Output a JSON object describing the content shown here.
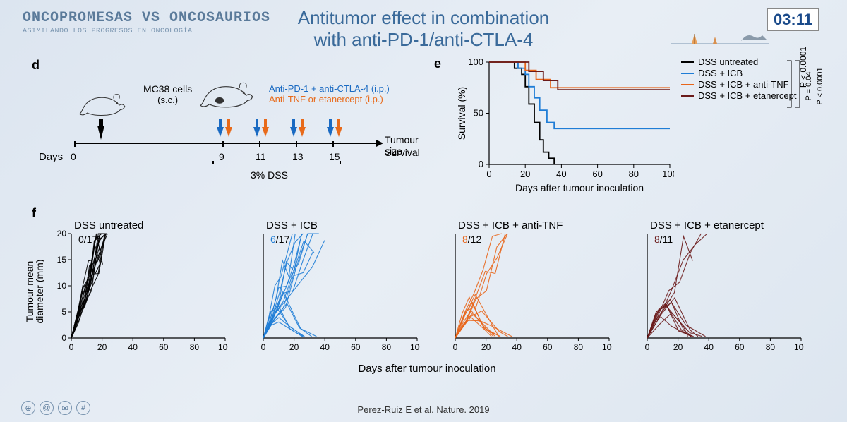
{
  "logo": {
    "main": "ONCOPROMESAS VS ONCOSAURIOS",
    "sub": "ASIMILANDO LOS PROGRESOS EN ONCOLOGÍA"
  },
  "title_l1": "Antitumor effect in combination",
  "title_l2": "with anti-PD-1/anti-CTLA-4",
  "timer": "03:11",
  "citation": "Perez-Ruiz E et al. Nature. 2019",
  "colors": {
    "black": "#000000",
    "blue": "#1f7dd6",
    "orange": "#e8651a",
    "darkred": "#6a1a1a",
    "title": "#3a6a9a",
    "grid": "#555555"
  },
  "panel_d": {
    "label": "d",
    "cells": "MC38 cells",
    "sc": "(s.c.)",
    "tx1": "Anti-PD-1 + anti-CTLA-4 (i.p.)",
    "tx2": "Anti-TNF or etanercept (i.p.)",
    "days_label": "Days",
    "days": [
      "0",
      "9",
      "11",
      "13",
      "15"
    ],
    "out1": "Tumour size",
    "out2": "Survival",
    "dss": "3% DSS",
    "timeline_x": [
      0,
      210,
      262,
      314,
      366
    ],
    "arrow_days_x": [
      210,
      262,
      314,
      366
    ]
  },
  "panel_e": {
    "label": "e",
    "ylabel": "Survival (%)",
    "xlabel": "Days after tumour inoculation",
    "xlim": [
      0,
      100
    ],
    "ylim": [
      0,
      100
    ],
    "xticks": [
      0,
      20,
      40,
      60,
      80,
      100
    ],
    "yticks": [
      0,
      50,
      100
    ],
    "legend": [
      {
        "label": "DSS untreated",
        "color": "#000000"
      },
      {
        "label": "DSS + ICB",
        "color": "#1f7dd6"
      },
      {
        "label": "DSS + ICB + anti-TNF",
        "color": "#e8651a"
      },
      {
        "label": "DSS + ICB + etanercept",
        "color": "#6a1a1a"
      }
    ],
    "pvals": [
      "P < 0.0001",
      "P = 0.04"
    ],
    "series": {
      "untreated": [
        [
          0,
          100
        ],
        [
          14,
          100
        ],
        [
          14,
          94
        ],
        [
          18,
          94
        ],
        [
          18,
          88
        ],
        [
          20,
          88
        ],
        [
          20,
          76
        ],
        [
          22,
          76
        ],
        [
          22,
          59
        ],
        [
          25,
          59
        ],
        [
          25,
          41
        ],
        [
          28,
          41
        ],
        [
          28,
          24
        ],
        [
          30,
          24
        ],
        [
          30,
          12
        ],
        [
          33,
          12
        ],
        [
          33,
          6
        ],
        [
          36,
          6
        ],
        [
          36,
          0
        ]
      ],
      "icb": [
        [
          0,
          100
        ],
        [
          16,
          100
        ],
        [
          16,
          94
        ],
        [
          20,
          94
        ],
        [
          20,
          88
        ],
        [
          22,
          88
        ],
        [
          22,
          76
        ],
        [
          25,
          76
        ],
        [
          25,
          65
        ],
        [
          28,
          65
        ],
        [
          28,
          53
        ],
        [
          32,
          53
        ],
        [
          32,
          41
        ],
        [
          36,
          41
        ],
        [
          36,
          35
        ],
        [
          100,
          35
        ]
      ],
      "antiTNF": [
        [
          0,
          100
        ],
        [
          20,
          100
        ],
        [
          20,
          92
        ],
        [
          26,
          92
        ],
        [
          26,
          83
        ],
        [
          34,
          83
        ],
        [
          34,
          75
        ],
        [
          100,
          75
        ]
      ],
      "etan": [
        [
          0,
          100
        ],
        [
          22,
          100
        ],
        [
          22,
          91
        ],
        [
          30,
          91
        ],
        [
          30,
          82
        ],
        [
          38,
          82
        ],
        [
          38,
          73
        ],
        [
          100,
          73
        ]
      ]
    }
  },
  "panel_f": {
    "label": "f",
    "ylabel_l1": "Tumour mean",
    "ylabel_l2": "diameter (mm)",
    "xlabel": "Days after tumour inoculation",
    "xlim": [
      0,
      100
    ],
    "ylim": [
      0,
      20
    ],
    "xticks": [
      0,
      20,
      40,
      60,
      80,
      100
    ],
    "yticks": [
      0,
      5,
      10,
      15,
      20
    ],
    "subplots": [
      {
        "title": "DSS untreated",
        "ratio_n": "0",
        "ratio_d": "/17",
        "color": "#000000",
        "n": 17,
        "spread": 6,
        "cures": 0,
        "maxday": 36
      },
      {
        "title": "DSS + ICB",
        "ratio_n": "6",
        "ratio_d": "/17",
        "color": "#1f7dd6",
        "n": 17,
        "spread": 12,
        "cures": 6,
        "maxday": 46
      },
      {
        "title": "DSS + ICB + anti-TNF",
        "ratio_n": "8",
        "ratio_d": "/12",
        "color": "#e8651a",
        "n": 12,
        "spread": 14,
        "cures": 8,
        "maxday": 56
      },
      {
        "title": "DSS + ICB + etanercept",
        "ratio_n": "8",
        "ratio_d": "/11",
        "color": "#6a1a1a",
        "n": 11,
        "spread": 16,
        "cures": 8,
        "maxday": 62
      }
    ]
  }
}
